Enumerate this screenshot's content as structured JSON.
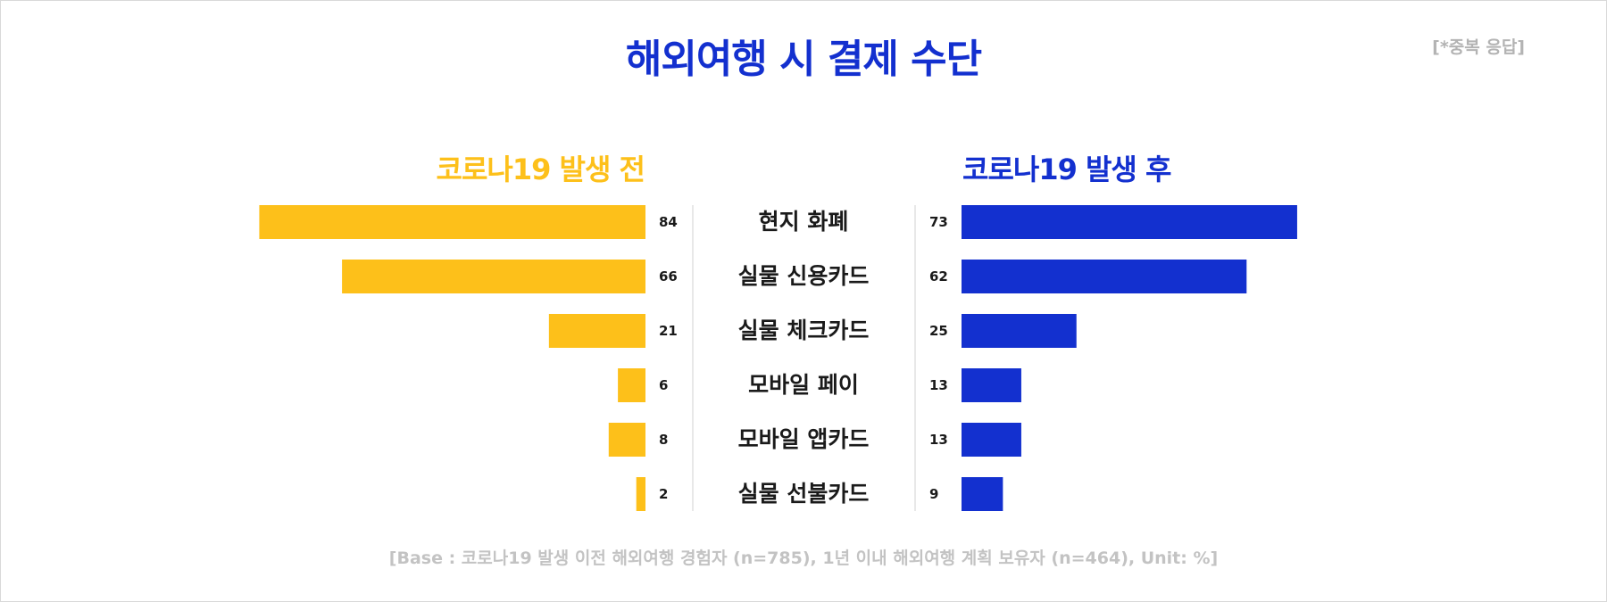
{
  "title": "해외여행 시 결제 수단",
  "note": "[*중복 응답]",
  "footer": "[Base : 코로나19 발생 이전 해외여행 경험자 (n=785), 1년 이내 해외여행 계획 보유자 (n=464), Unit: %]",
  "colors": {
    "before": "#fdc01a",
    "after": "#1330cf"
  },
  "chart_data": {
    "type": "bar",
    "orientation": "horizontal-butterfly",
    "unit": "%",
    "categories": [
      "현지 화폐",
      "실물 신용카드",
      "실물 체크카드",
      "모바일 페이",
      "모바일 앱카드",
      "실물 선불카드"
    ],
    "series": [
      {
        "name": "코로나19 발생 전",
        "values": [
          84,
          66,
          21,
          6,
          8,
          2
        ]
      },
      {
        "name": "코로나19 발생 후",
        "values": [
          73,
          62,
          25,
          13,
          13,
          9
        ]
      }
    ],
    "xlim": [
      0,
      84
    ],
    "grid": false,
    "legend": "above-each-side"
  }
}
